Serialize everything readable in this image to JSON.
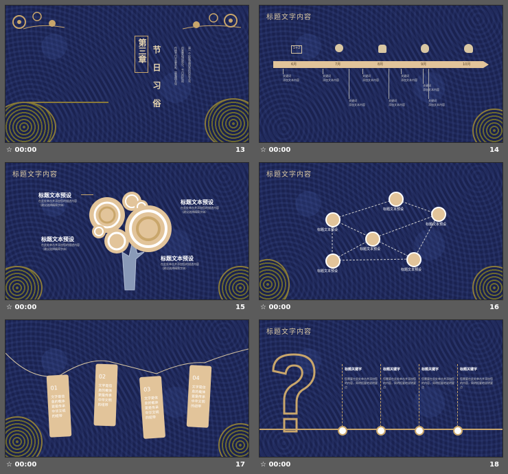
{
  "slides": [
    {
      "number": "13",
      "time": "00:00",
      "chapter": "第三章",
      "heading": "节日习俗",
      "desc": [
        "传统节日丰富多彩，是我国文化",
        "的重要组成部分。节日的形成",
        "是一个民族或国家的历史文化"
      ]
    },
    {
      "number": "14",
      "time": "00:00",
      "title": "标题文字内容",
      "timeline": {
        "months": [
          "6月",
          "7月",
          "8月",
          "9月",
          "10月"
        ],
        "items": [
          {
            "label": "关键词",
            "text": "添加文本内容"
          },
          {
            "label": "关键词",
            "text": "添加文本内容"
          },
          {
            "label": "关键词",
            "text": "添加文本内容"
          },
          {
            "label": "关键词",
            "text": "添加文本内容"
          },
          {
            "label": "关键词",
            "text": "添加文本内容"
          },
          {
            "label": "关键词",
            "text": "添加文本内容"
          },
          {
            "label": "关键词",
            "text": "添加文本内容"
          },
          {
            "label": "关键词",
            "text": "添加文本内容"
          }
        ]
      }
    },
    {
      "number": "15",
      "time": "00:00",
      "title": "标题文字内容",
      "labels": [
        {
          "heading": "标题文本预设",
          "line1": "在此处单击并添加您的描述内容",
          "line2": "（建议选择精简字体）"
        },
        {
          "heading": "标题文本预设",
          "line1": "在此处单击并添加您的描述内容",
          "line2": "（建议选择精简字体）"
        },
        {
          "heading": "标题文本预设",
          "line1": "在此处单击并添加您的描述内容",
          "line2": "（建议选择精简字体）"
        },
        {
          "heading": "标题文本预设",
          "line1": "在此处单击并添加您的描述内容",
          "line2": "（建议选择精简字体）"
        }
      ]
    },
    {
      "number": "16",
      "time": "00:00",
      "title": "标题文字内容",
      "nodes": [
        "标题文本预设",
        "标题文本预设",
        "标题文本预设",
        "标题文本预设",
        "标题文本预设",
        "标题文本预设"
      ]
    },
    {
      "number": "17",
      "time": "00:00",
      "tags": [
        {
          "num": "01",
          "text": "文字是信息的载体更是传承中华文明的纽带"
        },
        {
          "num": "02",
          "text": "文字是信息的载体更是传承中华文明的纽带"
        },
        {
          "num": "03",
          "text": "文字是信息的载体更是传承中华文明的纽带"
        },
        {
          "num": "04",
          "text": "文字是信息的载体更是传承中华文明的纽带"
        }
      ]
    },
    {
      "number": "18",
      "time": "00:00",
      "title": "标题文字内容",
      "columns": [
        {
          "heading": "标题关键字",
          "text": "您需要在此处单击并添加您的内容，简明扼要地说明要点"
        },
        {
          "heading": "标题关键字",
          "text": "您需要在此处单击并添加您的内容，简明扼要地说明要点"
        },
        {
          "heading": "标题关键字",
          "text": "您需要在此处单击并添加您的内容，简明扼要地说明要点"
        },
        {
          "heading": "标题关键字",
          "text": "您需要在此处单击并添加您的内容，简明扼要地说明要点"
        }
      ]
    }
  ],
  "colors": {
    "bg": "#1a2250",
    "gold": "#c9a66b",
    "beige": "#e2c49a"
  },
  "icons": [
    "clock-icon"
  ]
}
